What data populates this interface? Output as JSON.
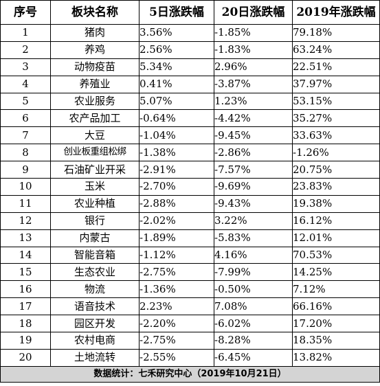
{
  "headers": {
    "index": "序号",
    "sector": "板块名称",
    "change_5d": "5日涨跌幅",
    "change_20d": "20日涨跌幅",
    "change_2019": "2019年涨跌幅"
  },
  "rows": [
    {
      "index": "1",
      "sector": "猪肉",
      "change_5d": "3.56%",
      "change_20d": "-1.85%",
      "change_2019": "79.18%"
    },
    {
      "index": "2",
      "sector": "养鸡",
      "change_5d": "2.56%",
      "change_20d": "-1.83%",
      "change_2019": "63.24%"
    },
    {
      "index": "3",
      "sector": "动物疫苗",
      "change_5d": "5.34%",
      "change_20d": "2.96%",
      "change_2019": "22.51%"
    },
    {
      "index": "4",
      "sector": "养殖业",
      "change_5d": "0.41%",
      "change_20d": "-3.87%",
      "change_2019": "37.97%"
    },
    {
      "index": "5",
      "sector": "农业服务",
      "change_5d": "5.07%",
      "change_20d": "1.23%",
      "change_2019": "53.15%"
    },
    {
      "index": "6",
      "sector": "农产品加工",
      "change_5d": "-0.64%",
      "change_20d": "-4.42%",
      "change_2019": "35.27%"
    },
    {
      "index": "7",
      "sector": "大豆",
      "change_5d": "-1.04%",
      "change_20d": "-9.45%",
      "change_2019": "33.63%"
    },
    {
      "index": "8",
      "sector": "创业板重组松绑",
      "change_5d": "-1.38%",
      "change_20d": "-2.86%",
      "change_2019": "-1.26%"
    },
    {
      "index": "9",
      "sector": "石油矿业开采",
      "change_5d": "-2.91%",
      "change_20d": "-7.57%",
      "change_2019": "20.75%"
    },
    {
      "index": "10",
      "sector": "玉米",
      "change_5d": "-2.70%",
      "change_20d": "-9.69%",
      "change_2019": "23.83%"
    },
    {
      "index": "11",
      "sector": "农业种植",
      "change_5d": "-2.88%",
      "change_20d": "-9.43%",
      "change_2019": "19.38%"
    },
    {
      "index": "12",
      "sector": "银行",
      "change_5d": "-2.02%",
      "change_20d": "3.22%",
      "change_2019": "16.12%"
    },
    {
      "index": "13",
      "sector": "内蒙古",
      "change_5d": "-1.89%",
      "change_20d": "-5.83%",
      "change_2019": "12.01%"
    },
    {
      "index": "14",
      "sector": "智能音箱",
      "change_5d": "-1.12%",
      "change_20d": "4.16%",
      "change_2019": "70.53%"
    },
    {
      "index": "15",
      "sector": "生态农业",
      "change_5d": "-2.75%",
      "change_20d": "-7.99%",
      "change_2019": "14.25%"
    },
    {
      "index": "16",
      "sector": "物流",
      "change_5d": "-1.36%",
      "change_20d": "-0.50%",
      "change_2019": "7.12%"
    },
    {
      "index": "17",
      "sector": "语音技术",
      "change_5d": "2.23%",
      "change_20d": "7.08%",
      "change_2019": "66.16%"
    },
    {
      "index": "18",
      "sector": "园区开发",
      "change_5d": "-2.20%",
      "change_20d": "-6.02%",
      "change_2019": "17.20%"
    },
    {
      "index": "19",
      "sector": "农村电商",
      "change_5d": "-2.75%",
      "change_20d": "-8.28%",
      "change_2019": "18.35%"
    },
    {
      "index": "20",
      "sector": "土地流转",
      "change_5d": "-2.55%",
      "change_20d": "-6.45%",
      "change_2019": "13.82%"
    }
  ],
  "footer": "数据统计：七禾研究中心（2019年10月21日）",
  "colors": {
    "border": "#000000",
    "footer_bg": "#d4d4d4"
  }
}
